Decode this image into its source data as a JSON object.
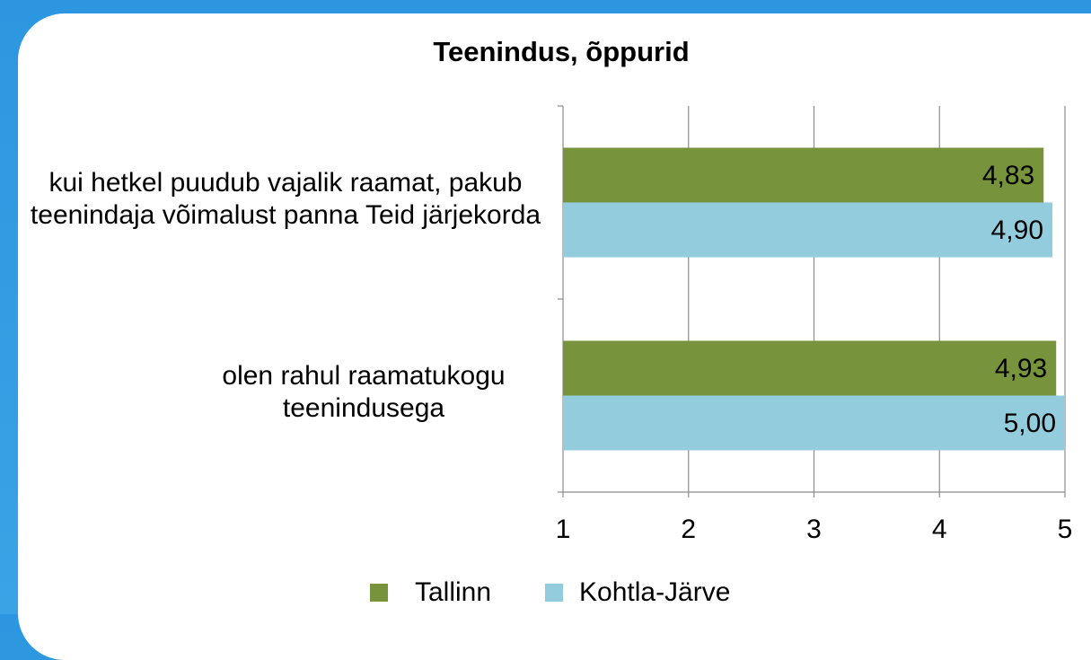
{
  "chart_data": {
    "type": "bar",
    "orientation": "horizontal",
    "title": "Teenindus, õppurid",
    "categories": [
      "kui hetkel puudub vajalik raamat, pakub teenindaja võimalust panna Teid järjekorda",
      "olen rahul raamatukogu teenindusega"
    ],
    "series": [
      {
        "name": "Tallinn",
        "color": "#77933c",
        "values": [
          4.83,
          4.93
        ],
        "value_labels": [
          "4,83",
          "4,93"
        ]
      },
      {
        "name": "Kohtla-Järve",
        "color": "#93cddd",
        "values": [
          4.9,
          5.0
        ],
        "value_labels": [
          "4,90",
          "5,00"
        ]
      }
    ],
    "xlim": [
      1,
      5
    ],
    "xticks": [
      1,
      2,
      3,
      4,
      5
    ],
    "grid": true,
    "legend": "bottom"
  }
}
